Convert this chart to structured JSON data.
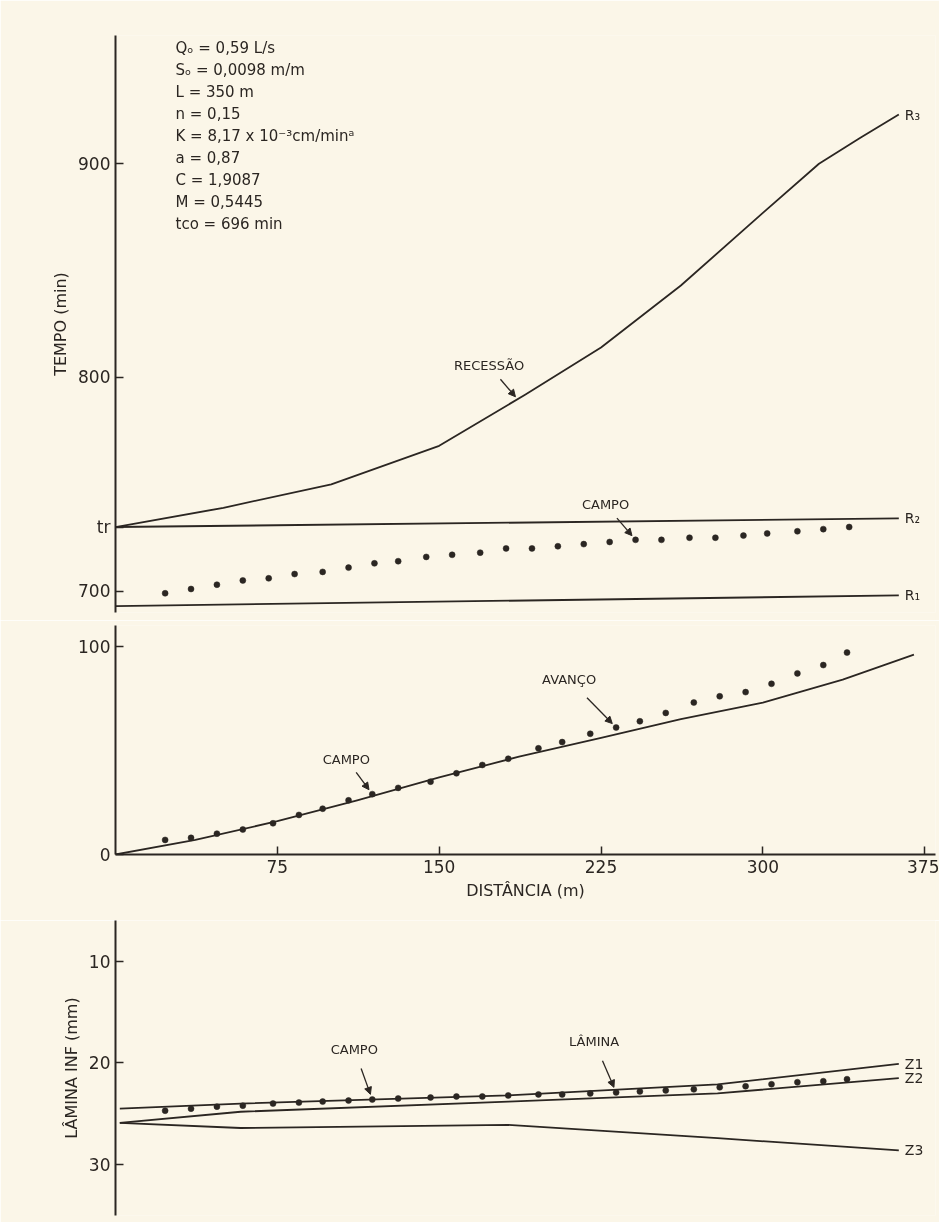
{
  "chart_data": [
    {
      "type": "line",
      "ylabel": "TEMPO (min)",
      "xlim": [
        0,
        380
      ],
      "ylim": [
        690,
        960
      ],
      "yticks": [
        700,
        {
          "value": 730,
          "label": "tr"
        },
        800,
        900
      ],
      "tick_labels": "y",
      "annotations": [
        "Qₒ =  0,59  L/s",
        "Sₒ =  0,0098  m/m",
        "L    =  350  m",
        "n    =  0,15",
        "K    =  8,17 x 10⁻³cm/minᵃ",
        "a    =  0,87",
        "C    =  1,9087",
        "M    =  0,5445",
        "tco =  696 min",
        {
          "text": "RECESSÃO",
          "x": 187,
          "y": 789
        },
        {
          "text": "CAMPO",
          "x": 241,
          "y": 724
        }
      ],
      "series": [
        {
          "name": "R₃",
          "color": "#2b2622",
          "x": [
            0,
            50,
            100,
            150,
            190,
            225,
            262,
            300,
            326,
            345,
            363
          ],
          "values": [
            730,
            739,
            750,
            768,
            792,
            814,
            843,
            877,
            900,
            912,
            923
          ]
        },
        {
          "name": "R₂",
          "color": "#2b2622",
          "x": [
            0,
            363
          ],
          "values": [
            730,
            734
          ]
        },
        {
          "name": "R₁",
          "color": "#2b2622",
          "x": [
            0,
            363
          ],
          "values": [
            693,
            698
          ]
        },
        {
          "type": "scatter",
          "marker": "circle",
          "color": "#2b2622",
          "x": [
            23,
            35,
            47,
            59,
            71,
            83,
            96,
            108,
            120,
            131,
            144,
            156,
            169,
            181,
            193,
            205,
            217,
            229,
            241,
            253,
            266,
            278,
            291,
            302,
            316,
            328,
            340
          ],
          "values": [
            699,
            701,
            703,
            705,
            706,
            708,
            709,
            711,
            713,
            714,
            716,
            717,
            718,
            720,
            720,
            721,
            722,
            723,
            724,
            724,
            725,
            725,
            726,
            727,
            728,
            729,
            730
          ]
        }
      ]
    },
    {
      "type": "line",
      "xlabel": "DISTÂNCIA (m)",
      "xlim": [
        0,
        380
      ],
      "ylim": [
        0,
        110
      ],
      "xticks": [
        75,
        150,
        225,
        300,
        375
      ],
      "yticks": [
        0,
        100
      ],
      "annotations": [
        {
          "text": "AVANÇO",
          "x": 232,
          "y": 61
        },
        {
          "text": "CAMPO",
          "x": 119,
          "y": 29
        }
      ],
      "series": [
        {
          "color": "#2b2622",
          "x": [
            0,
            37,
            75,
            112,
            150,
            187,
            225,
            262,
            300,
            337,
            370
          ],
          "values": [
            0,
            7,
            16,
            26,
            37,
            47,
            56,
            65,
            73,
            84,
            96
          ]
        },
        {
          "type": "scatter",
          "marker": "circle",
          "color": "#2b2622",
          "x": [
            23,
            35,
            47,
            59,
            73,
            85,
            96,
            108,
            119,
            131,
            146,
            158,
            170,
            182,
            196,
            207,
            220,
            232,
            243,
            255,
            268,
            280,
            292,
            304,
            316,
            328,
            339
          ],
          "values": [
            7,
            8,
            10,
            12,
            15,
            19,
            22,
            26,
            29,
            32,
            35,
            39,
            43,
            46,
            51,
            54,
            58,
            61,
            64,
            68,
            73,
            76,
            78,
            82,
            87,
            91,
            97
          ]
        }
      ]
    },
    {
      "type": "line",
      "ylabel": "LÂMINA INF (mm)",
      "xlim": [
        0,
        380
      ],
      "ylim": [
        35,
        6
      ],
      "yticks": [
        10,
        20,
        30
      ],
      "tick_labels": "y",
      "annotations": [
        {
          "text": "CAMPO",
          "x": 119,
          "y": 23.6
        },
        {
          "text": "LÂMINA",
          "x": 232,
          "y": 22.9
        }
      ],
      "series": [
        {
          "name": "Z1",
          "color": "#2b2622",
          "x": [
            2,
            58,
            182,
            279,
            363
          ],
          "values": [
            24.5,
            24.0,
            23.2,
            22.1,
            20.1
          ]
        },
        {
          "name": "Z2",
          "color": "#2b2622",
          "x": [
            2,
            58,
            182,
            279,
            363
          ],
          "values": [
            25.9,
            24.8,
            23.8,
            23.0,
            21.5
          ]
        },
        {
          "name": "Z3",
          "color": "#2b2622",
          "x": [
            2,
            58,
            182,
            279,
            363
          ],
          "values": [
            25.9,
            26.4,
            26.1,
            27.4,
            28.6
          ]
        },
        {
          "type": "scatter",
          "marker": "circle",
          "color": "#2b2622",
          "x": [
            23,
            35,
            47,
            59,
            73,
            85,
            96,
            108,
            119,
            131,
            146,
            158,
            170,
            182,
            196,
            207,
            220,
            232,
            243,
            255,
            268,
            280,
            292,
            304,
            316,
            328,
            339
          ],
          "values": [
            24.7,
            24.5,
            24.3,
            24.2,
            24.0,
            23.9,
            23.8,
            23.7,
            23.6,
            23.5,
            23.4,
            23.3,
            23.3,
            23.2,
            23.1,
            23.1,
            23.0,
            22.9,
            22.8,
            22.7,
            22.6,
            22.4,
            22.3,
            22.1,
            21.9,
            21.8,
            21.6
          ]
        }
      ]
    }
  ]
}
